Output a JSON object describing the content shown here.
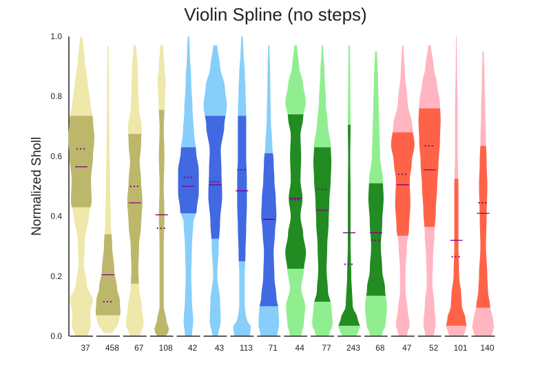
{
  "chart_data": {
    "type": "violin",
    "title": "Violin Spline (no steps)",
    "ylabel": "Normalized Sholl",
    "xlabel": "",
    "ylim": [
      0,
      1
    ],
    "yticks": [
      "0.0",
      "0.2",
      "0.4",
      "0.6",
      "0.8",
      "1.0"
    ],
    "grid": false,
    "colors": {
      "yellow_light": "#eee8aa",
      "yellow_dark": "#bdb76b",
      "blue_light": "#87cefa",
      "blue_dark": "#4169e1",
      "green_light": "#90ee90",
      "green_dark": "#228b22",
      "red_light": "#ffb6c1",
      "red_dark": "#ff6347",
      "median_line": "#800080"
    },
    "violins": [
      {
        "label": "37",
        "group": "yellow",
        "median": 0.565,
        "mean": 0.625,
        "q1": 0.43,
        "q3": 0.735,
        "profile": [
          [
            0.0,
            8
          ],
          [
            0.03,
            14
          ],
          [
            0.08,
            13
          ],
          [
            0.12,
            17
          ],
          [
            0.17,
            8
          ],
          [
            0.24,
            4
          ],
          [
            0.32,
            5
          ],
          [
            0.4,
            11
          ],
          [
            0.45,
            15
          ],
          [
            0.52,
            14
          ],
          [
            0.6,
            17
          ],
          [
            0.66,
            19
          ],
          [
            0.72,
            17
          ],
          [
            0.78,
            13
          ],
          [
            0.85,
            9
          ],
          [
            0.92,
            5
          ],
          [
            0.97,
            3
          ],
          [
            1.0,
            1
          ]
        ]
      },
      {
        "label": "458",
        "group": "yellow",
        "median": 0.205,
        "mean": 0.115,
        "q1": 0.07,
        "q3": 0.34,
        "profile": [
          [
            0.01,
            6
          ],
          [
            0.04,
            15
          ],
          [
            0.08,
            18
          ],
          [
            0.12,
            17
          ],
          [
            0.16,
            13
          ],
          [
            0.22,
            9
          ],
          [
            0.3,
            6
          ],
          [
            0.38,
            4
          ],
          [
            0.5,
            3
          ],
          [
            0.65,
            2
          ],
          [
            0.8,
            1.5
          ],
          [
            0.97,
            0.8
          ]
        ]
      },
      {
        "label": "67",
        "group": "yellow",
        "median": 0.445,
        "mean": 0.5,
        "q1": 0.175,
        "q3": 0.675,
        "profile": [
          [
            0.0,
            7
          ],
          [
            0.04,
            13
          ],
          [
            0.1,
            10
          ],
          [
            0.16,
            6
          ],
          [
            0.22,
            5
          ],
          [
            0.3,
            6
          ],
          [
            0.37,
            9
          ],
          [
            0.45,
            11
          ],
          [
            0.52,
            9
          ],
          [
            0.58,
            7
          ],
          [
            0.64,
            9
          ],
          [
            0.7,
            10
          ],
          [
            0.76,
            6
          ],
          [
            0.82,
            5
          ],
          [
            0.9,
            4
          ],
          [
            0.97,
            2
          ]
        ]
      },
      {
        "label": "108",
        "group": "yellow",
        "median": 0.405,
        "mean": 0.36,
        "q1": 0.0,
        "q3": 0.755,
        "profile": [
          [
            0.0,
            6
          ],
          [
            0.02,
            11
          ],
          [
            0.05,
            7
          ],
          [
            0.1,
            3
          ],
          [
            0.2,
            3
          ],
          [
            0.3,
            3
          ],
          [
            0.4,
            4
          ],
          [
            0.5,
            3
          ],
          [
            0.6,
            4
          ],
          [
            0.7,
            3
          ],
          [
            0.75,
            4
          ],
          [
            0.8,
            5
          ],
          [
            0.85,
            6
          ],
          [
            0.9,
            4
          ],
          [
            0.97,
            2
          ]
        ]
      },
      {
        "label": "42",
        "group": "blue",
        "median": 0.5,
        "mean": 0.53,
        "q1": 0.41,
        "q3": 0.63,
        "profile": [
          [
            0.0,
            5
          ],
          [
            0.05,
            7
          ],
          [
            0.12,
            5
          ],
          [
            0.2,
            4
          ],
          [
            0.3,
            5
          ],
          [
            0.38,
            7
          ],
          [
            0.42,
            12
          ],
          [
            0.48,
            15
          ],
          [
            0.55,
            15
          ],
          [
            0.62,
            11
          ],
          [
            0.68,
            8
          ],
          [
            0.75,
            6
          ],
          [
            0.85,
            4
          ],
          [
            0.95,
            2
          ],
          [
            1.0,
            1
          ]
        ]
      },
      {
        "label": "43",
        "group": "blue",
        "median": 0.505,
        "mean": 0.515,
        "q1": 0.325,
        "q3": 0.735,
        "profile": [
          [
            0.0,
            4
          ],
          [
            0.05,
            8
          ],
          [
            0.12,
            7
          ],
          [
            0.2,
            3
          ],
          [
            0.3,
            5
          ],
          [
            0.38,
            7
          ],
          [
            0.47,
            10
          ],
          [
            0.55,
            9
          ],
          [
            0.62,
            8
          ],
          [
            0.7,
            13
          ],
          [
            0.77,
            17
          ],
          [
            0.83,
            14
          ],
          [
            0.9,
            7
          ],
          [
            0.97,
            3
          ]
        ]
      },
      {
        "label": "113",
        "group": "blue",
        "median": 0.485,
        "mean": 0.555,
        "q1": 0.25,
        "q3": 0.735,
        "profile": [
          [
            0.0,
            11
          ],
          [
            0.03,
            13
          ],
          [
            0.06,
            6
          ],
          [
            0.1,
            4
          ],
          [
            0.2,
            4
          ],
          [
            0.28,
            5
          ],
          [
            0.36,
            6
          ],
          [
            0.44,
            7
          ],
          [
            0.52,
            7
          ],
          [
            0.6,
            6
          ],
          [
            0.68,
            6
          ],
          [
            0.75,
            6
          ],
          [
            0.82,
            5
          ],
          [
            0.88,
            4
          ],
          [
            0.95,
            2
          ],
          [
            1.0,
            1
          ]
        ]
      },
      {
        "label": "71",
        "group": "blue",
        "median": 0.39,
        "mean": 0.39,
        "q1": 0.1,
        "q3": 0.61,
        "profile": [
          [
            0.0,
            12
          ],
          [
            0.04,
            15
          ],
          [
            0.09,
            14
          ],
          [
            0.13,
            11
          ],
          [
            0.2,
            8
          ],
          [
            0.28,
            7
          ],
          [
            0.35,
            9
          ],
          [
            0.4,
            11
          ],
          [
            0.46,
            10
          ],
          [
            0.52,
            8
          ],
          [
            0.58,
            7
          ],
          [
            0.64,
            5
          ],
          [
            0.72,
            3
          ],
          [
            0.85,
            2
          ],
          [
            0.97,
            1
          ]
        ]
      },
      {
        "label": "44",
        "group": "green",
        "median": 0.46,
        "mean": 0.455,
        "q1": 0.225,
        "q3": 0.74,
        "profile": [
          [
            0.0,
            8
          ],
          [
            0.04,
            12
          ],
          [
            0.1,
            14
          ],
          [
            0.16,
            8
          ],
          [
            0.22,
            12
          ],
          [
            0.28,
            15
          ],
          [
            0.34,
            11
          ],
          [
            0.4,
            7
          ],
          [
            0.46,
            10
          ],
          [
            0.52,
            7
          ],
          [
            0.6,
            8
          ],
          [
            0.67,
            7
          ],
          [
            0.73,
            11
          ],
          [
            0.78,
            15
          ],
          [
            0.84,
            11
          ],
          [
            0.9,
            5
          ],
          [
            0.97,
            2
          ]
        ]
      },
      {
        "label": "77",
        "group": "green",
        "median": 0.42,
        "mean": 0.49,
        "q1": 0.115,
        "q3": 0.63,
        "profile": [
          [
            0.0,
            9
          ],
          [
            0.04,
            15
          ],
          [
            0.1,
            13
          ],
          [
            0.15,
            8
          ],
          [
            0.22,
            6
          ],
          [
            0.3,
            7
          ],
          [
            0.38,
            9
          ],
          [
            0.45,
            10
          ],
          [
            0.52,
            12
          ],
          [
            0.58,
            13
          ],
          [
            0.64,
            12
          ],
          [
            0.7,
            8
          ],
          [
            0.78,
            5
          ],
          [
            0.88,
            3
          ],
          [
            0.97,
            1
          ]
        ]
      },
      {
        "label": "243",
        "group": "green",
        "median": 0.345,
        "mean": 0.24,
        "q1": 0.035,
        "q3": 0.705,
        "profile": [
          [
            0.0,
            10
          ],
          [
            0.03,
            16
          ],
          [
            0.06,
            12
          ],
          [
            0.1,
            5
          ],
          [
            0.2,
            3
          ],
          [
            0.3,
            2
          ],
          [
            0.45,
            2
          ],
          [
            0.6,
            1.5
          ],
          [
            0.72,
            2
          ],
          [
            0.85,
            1.5
          ],
          [
            0.97,
            1
          ]
        ]
      },
      {
        "label": "68",
        "group": "green",
        "median": 0.345,
        "mean": 0.32,
        "q1": 0.135,
        "q3": 0.51,
        "profile": [
          [
            0.0,
            8
          ],
          [
            0.04,
            14
          ],
          [
            0.1,
            16
          ],
          [
            0.16,
            13
          ],
          [
            0.22,
            9
          ],
          [
            0.3,
            7
          ],
          [
            0.38,
            9
          ],
          [
            0.46,
            11
          ],
          [
            0.52,
            10
          ],
          [
            0.6,
            6
          ],
          [
            0.68,
            5
          ],
          [
            0.76,
            4
          ],
          [
            0.85,
            3
          ],
          [
            0.95,
            1.5
          ]
        ]
      },
      {
        "label": "47",
        "group": "red",
        "median": 0.505,
        "mean": 0.54,
        "q1": 0.335,
        "q3": 0.68,
        "profile": [
          [
            0.0,
            6
          ],
          [
            0.04,
            10
          ],
          [
            0.09,
            7
          ],
          [
            0.15,
            4
          ],
          [
            0.22,
            4
          ],
          [
            0.3,
            6
          ],
          [
            0.36,
            9
          ],
          [
            0.44,
            11
          ],
          [
            0.52,
            10
          ],
          [
            0.58,
            13
          ],
          [
            0.64,
            17
          ],
          [
            0.7,
            14
          ],
          [
            0.78,
            7
          ],
          [
            0.88,
            3
          ],
          [
            0.97,
            1
          ]
        ]
      },
      {
        "label": "52",
        "group": "red",
        "median": 0.555,
        "mean": 0.635,
        "q1": 0.365,
        "q3": 0.76,
        "profile": [
          [
            0.0,
            6
          ],
          [
            0.04,
            9
          ],
          [
            0.1,
            7
          ],
          [
            0.18,
            4
          ],
          [
            0.26,
            5
          ],
          [
            0.34,
            7
          ],
          [
            0.42,
            9
          ],
          [
            0.5,
            11
          ],
          [
            0.58,
            13
          ],
          [
            0.65,
            15
          ],
          [
            0.72,
            16
          ],
          [
            0.78,
            15
          ],
          [
            0.84,
            11
          ],
          [
            0.9,
            6
          ],
          [
            0.97,
            2
          ]
        ]
      },
      {
        "label": "101",
        "group": "red",
        "median": 0.32,
        "mean": 0.265,
        "q1": 0.035,
        "q3": 0.525,
        "profile": [
          [
            0.0,
            10
          ],
          [
            0.03,
            15
          ],
          [
            0.06,
            13
          ],
          [
            0.1,
            8
          ],
          [
            0.14,
            7
          ],
          [
            0.2,
            4
          ],
          [
            0.3,
            3
          ],
          [
            0.4,
            3
          ],
          [
            0.5,
            3
          ],
          [
            0.6,
            2
          ],
          [
            0.75,
            2
          ],
          [
            0.9,
            1
          ],
          [
            1.0,
            0.5
          ]
        ]
      },
      {
        "label": "140",
        "group": "red",
        "median": 0.41,
        "mean": 0.445,
        "q1": 0.095,
        "q3": 0.635,
        "profile": [
          [
            0.0,
            12
          ],
          [
            0.03,
            16
          ],
          [
            0.06,
            14
          ],
          [
            0.1,
            10
          ],
          [
            0.15,
            7
          ],
          [
            0.2,
            6
          ],
          [
            0.3,
            4
          ],
          [
            0.4,
            5
          ],
          [
            0.5,
            6
          ],
          [
            0.58,
            5
          ],
          [
            0.65,
            4
          ],
          [
            0.75,
            3
          ],
          [
            0.85,
            2
          ],
          [
            0.95,
            1
          ]
        ]
      }
    ]
  }
}
